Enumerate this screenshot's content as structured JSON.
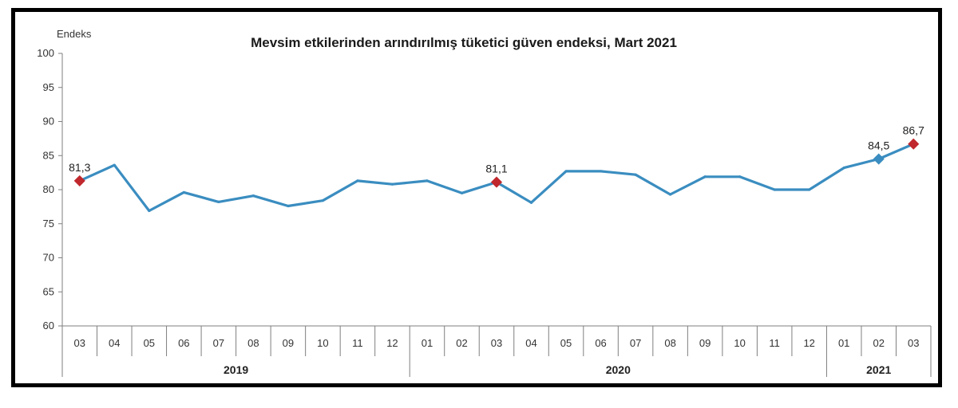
{
  "chart_data": {
    "type": "line",
    "title": "Mevsim etkilerinden arındırılmış tüketici güven endeksi, Mart 2021",
    "ylabel": "Endeks",
    "ylim": [
      60,
      100
    ],
    "yticks": [
      "60",
      "65",
      "70",
      "75",
      "80",
      "85",
      "90",
      "95",
      "100"
    ],
    "categories": [
      "03",
      "04",
      "05",
      "06",
      "07",
      "08",
      "09",
      "10",
      "11",
      "12",
      "01",
      "02",
      "03",
      "04",
      "05",
      "06",
      "07",
      "08",
      "09",
      "10",
      "11",
      "12",
      "01",
      "02",
      "03"
    ],
    "years": [
      {
        "label": "2019",
        "first": 0,
        "last": 9
      },
      {
        "label": "2020",
        "first": 10,
        "last": 21
      },
      {
        "label": "2021",
        "first": 22,
        "last": 24
      }
    ],
    "series": [
      {
        "color": "#3a8dc0",
        "values": [
          81.3,
          83.6,
          76.9,
          79.6,
          78.2,
          79.1,
          77.6,
          78.4,
          81.3,
          80.8,
          81.3,
          79.5,
          81.1,
          78.1,
          82.7,
          82.7,
          82.2,
          79.3,
          81.9,
          81.9,
          80.0,
          80.0,
          83.2,
          84.5,
          86.7
        ]
      }
    ],
    "highlights": [
      {
        "index": 0,
        "label": "81,3",
        "color": "#c0282d"
      },
      {
        "index": 12,
        "label": "81,1",
        "color": "#c0282d"
      },
      {
        "index": 23,
        "label": "84,5",
        "color": "#3a8dc0"
      },
      {
        "index": 24,
        "label": "86,7",
        "color": "#c0282d"
      }
    ],
    "grid": false,
    "legend": "none"
  }
}
